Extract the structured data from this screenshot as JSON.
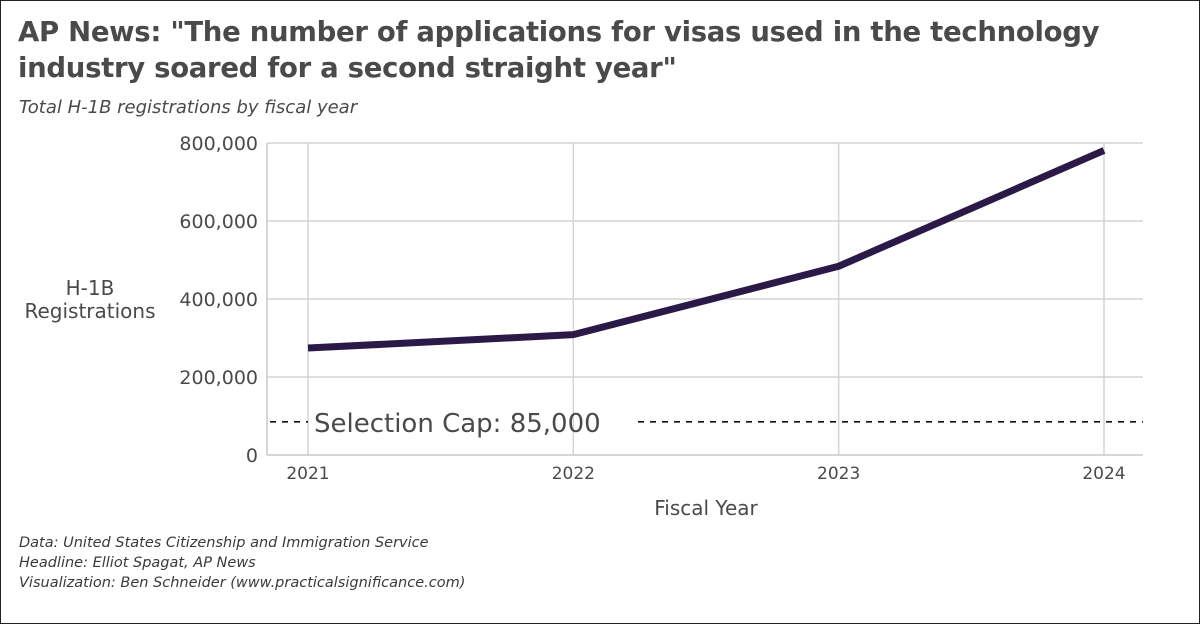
{
  "title": "AP News: \"The number of applications for visas used in the technology industry soared for a second straight year\"",
  "subtitle": "Total H-1B registrations by fiscal year",
  "caption": [
    "Data: United States Citizenship and Immigration Service",
    "Headline: Elliot Spagat, AP News",
    "Visualization: Ben Schneider (www.practicalsignificance.com)"
  ],
  "colors": {
    "line": "#2b1a47",
    "grid": "#d4d4d4",
    "text": "#4a4a4a"
  },
  "chart_data": {
    "type": "line",
    "x": [
      2021,
      2022,
      2023,
      2024
    ],
    "series": [
      {
        "values": [
          274237,
          308613,
          483927,
          780884
        ]
      }
    ],
    "xlabel": "Fiscal Year",
    "ylabel_lines": [
      "H-1B",
      "Registrations"
    ],
    "xticks": [
      "2021",
      "2022",
      "2023",
      "2024"
    ],
    "yticks": [
      {
        "value": 0,
        "label": "0"
      },
      {
        "value": 200000,
        "label": "200,000"
      },
      {
        "value": 400000,
        "label": "400,000"
      },
      {
        "value": 600000,
        "label": "600,000"
      },
      {
        "value": 800000,
        "label": "800,000"
      }
    ],
    "ylim": [
      0,
      800000
    ],
    "xlim": [
      2021,
      2024
    ],
    "grid": true,
    "annotations": [
      {
        "type": "hline",
        "y": 85000,
        "style": "dashed",
        "label": "Selection Cap: 85,000"
      }
    ]
  }
}
